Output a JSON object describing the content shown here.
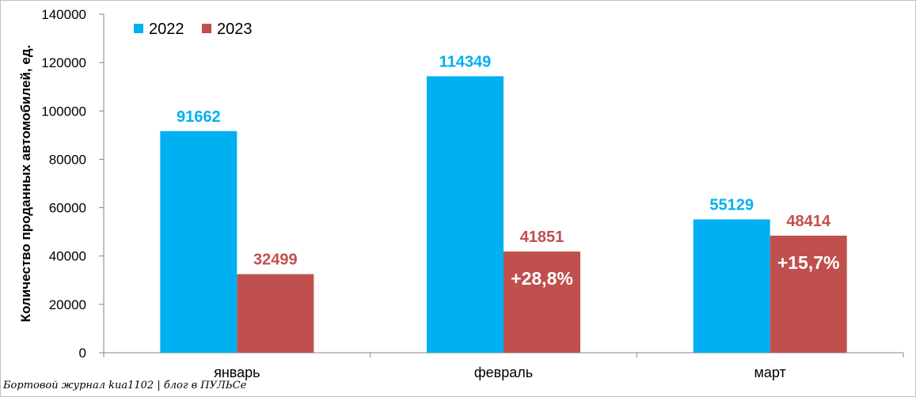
{
  "chart_data": {
    "type": "bar",
    "categories": [
      "январь",
      "февраль",
      "март"
    ],
    "series": [
      {
        "name": "2022",
        "values": [
          91662,
          114349,
          55129
        ],
        "color": "#00b0f0"
      },
      {
        "name": "2023",
        "values": [
          32499,
          41851,
          48414
        ],
        "color": "#c0504d"
      }
    ],
    "growth_labels": [
      "",
      "+28,8%",
      "+15,7%"
    ],
    "ylabel": "Количество проданных  автомобилей, ед.",
    "xlabel": "",
    "ylim": [
      0,
      140000
    ],
    "yticks": [
      0,
      20000,
      40000,
      60000,
      80000,
      100000,
      120000,
      140000
    ],
    "legend_position": "top-left",
    "grid": false
  },
  "watermark": "Бортовой журнал kua1102 | блог в ПУЛЬСе"
}
